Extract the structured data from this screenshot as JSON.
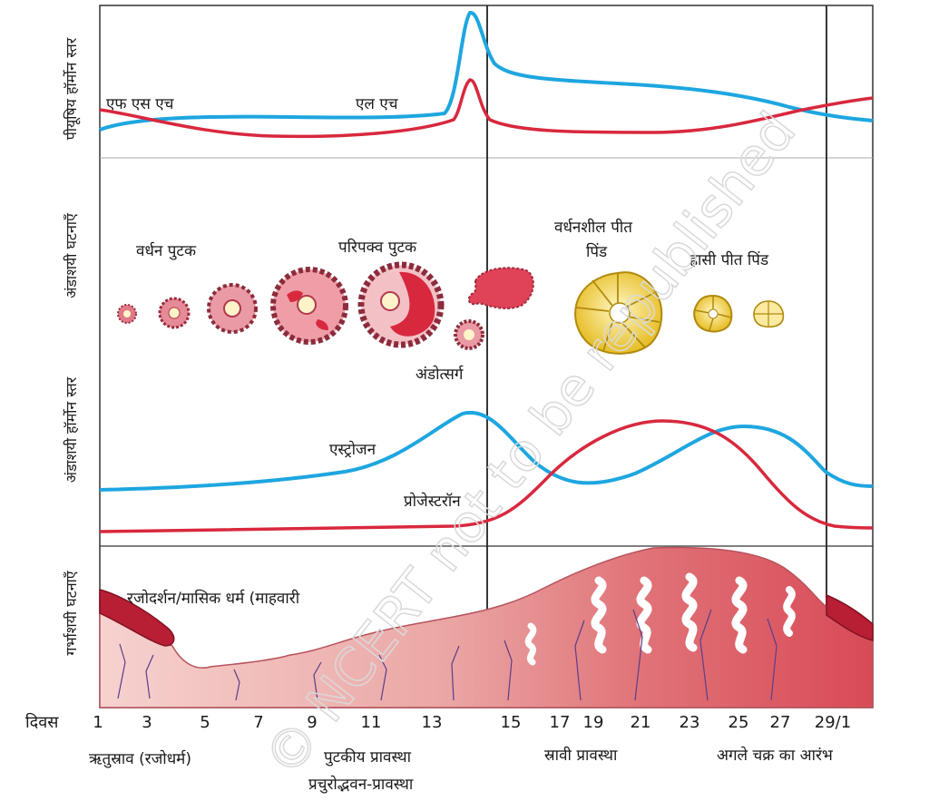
{
  "panels": {
    "pituitary": {
      "ylabel": "पीयूषिय हॉर्मोन स्तर",
      "fsh_label": "एफ एस एच",
      "lh_label": "एल एच"
    },
    "ovarian_events": {
      "ylabel": "अंडाशयी घटनाएँ",
      "growing_follicle": "वर्धन पुटक",
      "mature_follicle": "परिपक्व पुटक",
      "ovulation": "अंडोत्सर्ग",
      "developing_corpus_luteum_line1": "वर्धनशील पीत",
      "developing_corpus_luteum_line2": "पिंड",
      "degenerating_corpus_luteum": "ह्रासी पीत पिंड"
    },
    "ovarian_hormones": {
      "ylabel": "अंडाशयी हॉर्मोन स्तर",
      "estrogen_label": "एस्ट्रोजन",
      "progesterone_label": "प्रोजेस्टरॉन"
    },
    "uterine_events": {
      "ylabel": "गर्भाशयी घटनाएँ",
      "menstruation_label": "रजोदर्शन/मासिक धर्म (माहवारी"
    }
  },
  "days_axis": {
    "label": "दिवस",
    "ticks": [
      "1",
      "3",
      "5",
      "7",
      "9",
      "11",
      "13",
      "15",
      "17",
      "19",
      "21",
      "23",
      "25",
      "27",
      "29/1"
    ]
  },
  "phases": {
    "menstrual": "ऋतुस्राव (रजोधर्म)",
    "follicular_line1": "पुटकीय प्रावस्था",
    "follicular_line2": "प्रचुरोद्भवन-प्रावस्था",
    "secretory": "स्रावी प्रावस्था",
    "next_cycle": "अगले चक्र का आरंभ"
  },
  "watermark": "© NCERT not to be republished",
  "colors": {
    "blue_curve": "#1ea6e0",
    "red_curve": "#d8283e",
    "endometrium": "#e8a2a0",
    "endometrium_dark": "#cf4a56",
    "corpus_luteum": "#f3d24a",
    "follicle": "#d9576a"
  },
  "icons": [
    "follicle-growth-sequence-icon",
    "ovulation-icon",
    "corpus-luteum-icon"
  ]
}
